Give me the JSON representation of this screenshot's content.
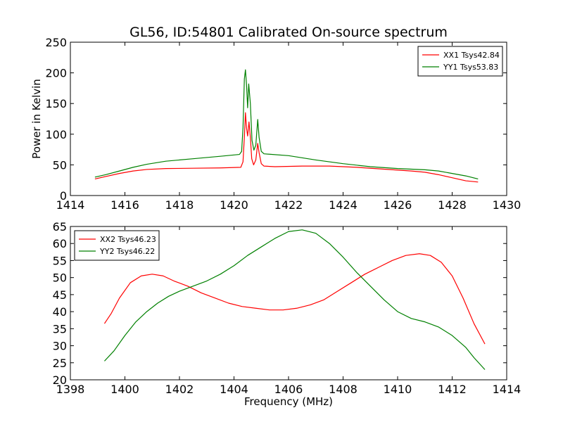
{
  "chart_data": [
    {
      "type": "line",
      "title": "GL56, ID:54801 Calibrated On-source spectrum",
      "xlabel": "",
      "ylabel": "Power in Kelvin",
      "xlim": [
        1414,
        1430
      ],
      "ylim": [
        0,
        250
      ],
      "xticks": [
        1414,
        1416,
        1418,
        1420,
        1422,
        1424,
        1426,
        1428,
        1430
      ],
      "yticks": [
        0,
        50,
        100,
        150,
        200,
        250
      ],
      "grid": false,
      "legend_position": "top-right",
      "series": [
        {
          "name": "XX1 Tsys42.84",
          "color": "#ff0000",
          "points": [
            [
              1414.9,
              27
            ],
            [
              1415.3,
              31
            ],
            [
              1415.8,
              36
            ],
            [
              1416.3,
              40
            ],
            [
              1416.8,
              42.5
            ],
            [
              1417.5,
              44
            ],
            [
              1418.5,
              44.5
            ],
            [
              1419.5,
              45
            ],
            [
              1420.25,
              46
            ],
            [
              1420.33,
              55
            ],
            [
              1420.38,
              95
            ],
            [
              1420.42,
              135
            ],
            [
              1420.46,
              110
            ],
            [
              1420.5,
              97
            ],
            [
              1420.55,
              120
            ],
            [
              1420.6,
              95
            ],
            [
              1420.65,
              60
            ],
            [
              1420.72,
              50
            ],
            [
              1420.8,
              58
            ],
            [
              1420.87,
              85
            ],
            [
              1420.92,
              70
            ],
            [
              1421.0,
              52
            ],
            [
              1421.1,
              48
            ],
            [
              1421.5,
              47
            ],
            [
              1422.5,
              48
            ],
            [
              1423.5,
              48
            ],
            [
              1424.5,
              46
            ],
            [
              1425.5,
              43
            ],
            [
              1426.5,
              40
            ],
            [
              1427.0,
              38
            ],
            [
              1427.5,
              34
            ],
            [
              1428.0,
              29
            ],
            [
              1428.5,
              24
            ],
            [
              1428.95,
              22
            ]
          ]
        },
        {
          "name": "YY1 Tsys53.83",
          "color": "#008000",
          "points": [
            [
              1414.9,
              30
            ],
            [
              1415.3,
              34
            ],
            [
              1415.8,
              40
            ],
            [
              1416.3,
              46
            ],
            [
              1416.8,
              51
            ],
            [
              1417.5,
              56
            ],
            [
              1418.5,
              60
            ],
            [
              1419.5,
              64
            ],
            [
              1420.2,
              67
            ],
            [
              1420.28,
              72
            ],
            [
              1420.33,
              110
            ],
            [
              1420.38,
              190
            ],
            [
              1420.42,
              205
            ],
            [
              1420.46,
              180
            ],
            [
              1420.5,
              143
            ],
            [
              1420.54,
              182
            ],
            [
              1420.6,
              150
            ],
            [
              1420.66,
              90
            ],
            [
              1420.73,
              74
            ],
            [
              1420.8,
              82
            ],
            [
              1420.87,
              124
            ],
            [
              1420.92,
              95
            ],
            [
              1421.0,
              72
            ],
            [
              1421.1,
              68
            ],
            [
              1422.0,
              65
            ],
            [
              1423.0,
              58
            ],
            [
              1424.0,
              52
            ],
            [
              1425.0,
              47
            ],
            [
              1426.0,
              44
            ],
            [
              1427.0,
              42
            ],
            [
              1427.5,
              40
            ],
            [
              1428.0,
              36
            ],
            [
              1428.5,
              32
            ],
            [
              1428.95,
              27
            ]
          ]
        }
      ]
    },
    {
      "type": "line",
      "title": "",
      "xlabel": "Frequency (MHz)",
      "ylabel": "",
      "xlim": [
        1398,
        1414
      ],
      "ylim": [
        20,
        65
      ],
      "xticks": [
        1398,
        1400,
        1402,
        1404,
        1406,
        1408,
        1410,
        1412,
        1414
      ],
      "yticks": [
        20,
        25,
        30,
        35,
        40,
        45,
        50,
        55,
        60,
        65
      ],
      "grid": false,
      "legend_position": "top-left",
      "series": [
        {
          "name": "XX2 Tsys46.23",
          "color": "#ff0000",
          "points": [
            [
              1399.25,
              36.5
            ],
            [
              1399.5,
              39.5
            ],
            [
              1399.8,
              44
            ],
            [
              1400.2,
              48.5
            ],
            [
              1400.6,
              50.5
            ],
            [
              1401.0,
              51
            ],
            [
              1401.4,
              50.5
            ],
            [
              1401.8,
              49
            ],
            [
              1402.3,
              47.5
            ],
            [
              1402.8,
              45.5
            ],
            [
              1403.3,
              44
            ],
            [
              1403.8,
              42.5
            ],
            [
              1404.3,
              41.5
            ],
            [
              1404.8,
              41
            ],
            [
              1405.3,
              40.5
            ],
            [
              1405.8,
              40.5
            ],
            [
              1406.3,
              41
            ],
            [
              1406.8,
              42
            ],
            [
              1407.3,
              43.5
            ],
            [
              1407.8,
              46
            ],
            [
              1408.3,
              48.5
            ],
            [
              1408.8,
              51
            ],
            [
              1409.3,
              53
            ],
            [
              1409.8,
              55
            ],
            [
              1410.3,
              56.5
            ],
            [
              1410.8,
              57
            ],
            [
              1411.2,
              56.5
            ],
            [
              1411.6,
              54.5
            ],
            [
              1412.0,
              50.5
            ],
            [
              1412.4,
              44
            ],
            [
              1412.8,
              36.5
            ],
            [
              1413.2,
              30.5
            ]
          ]
        },
        {
          "name": "YY2 Tsys46.22",
          "color": "#008000",
          "points": [
            [
              1399.25,
              25.5
            ],
            [
              1399.6,
              28.5
            ],
            [
              1400.0,
              33
            ],
            [
              1400.4,
              37
            ],
            [
              1400.8,
              40
            ],
            [
              1401.2,
              42.5
            ],
            [
              1401.6,
              44.5
            ],
            [
              1402.0,
              46
            ],
            [
              1402.5,
              47.5
            ],
            [
              1403.0,
              49
            ],
            [
              1403.5,
              51
            ],
            [
              1404.0,
              53.5
            ],
            [
              1404.5,
              56.5
            ],
            [
              1405.0,
              59
            ],
            [
              1405.5,
              61.5
            ],
            [
              1406.0,
              63.5
            ],
            [
              1406.5,
              64
            ],
            [
              1407.0,
              63
            ],
            [
              1407.5,
              60
            ],
            [
              1408.0,
              56
            ],
            [
              1408.5,
              51.5
            ],
            [
              1409.0,
              47.5
            ],
            [
              1409.5,
              43.5
            ],
            [
              1410.0,
              40
            ],
            [
              1410.5,
              38
            ],
            [
              1411.0,
              37
            ],
            [
              1411.5,
              35.5
            ],
            [
              1412.0,
              33
            ],
            [
              1412.5,
              29.5
            ],
            [
              1412.8,
              26.5
            ],
            [
              1413.2,
              23
            ]
          ]
        }
      ]
    }
  ]
}
